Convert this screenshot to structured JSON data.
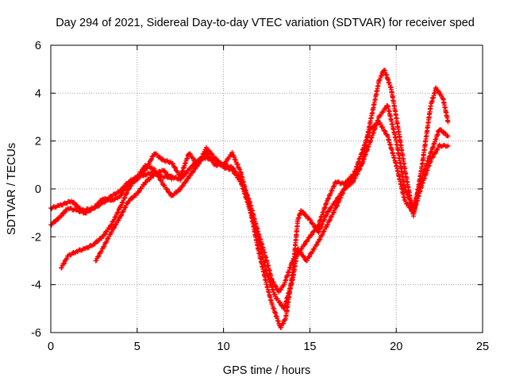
{
  "chart_data": {
    "type": "scatter",
    "title": "Day 294 of 2021, Sidereal Day-to-day VTEC variation (SDTVAR) for receiver sped",
    "xlabel": "GPS time / hours",
    "ylabel": "SDTVAR / TECUs",
    "xlim": [
      0,
      25
    ],
    "ylim": [
      -6,
      6
    ],
    "x_ticks": [
      0,
      5,
      10,
      15,
      20,
      25
    ],
    "y_ticks": [
      -6,
      -4,
      -2,
      0,
      2,
      4,
      6
    ],
    "grid": true,
    "legend": "none",
    "marker": "plus",
    "series": [
      {
        "color": "#ff0000",
        "points": [
          [
            0.0,
            -0.8
          ],
          [
            0.5,
            -0.7
          ],
          [
            1.2,
            -0.5
          ],
          [
            1.8,
            -0.9
          ],
          [
            2.5,
            -0.8
          ],
          [
            3.0,
            -0.6
          ],
          [
            3.5,
            -0.3
          ],
          [
            4.0,
            -0.1
          ],
          [
            4.5,
            0.3
          ],
          [
            5.0,
            0.5
          ],
          [
            5.5,
            0.6
          ],
          [
            6.0,
            0.7
          ],
          [
            6.5,
            0.5
          ],
          [
            7.0,
            0.5
          ],
          [
            7.5,
            0.4
          ],
          [
            8.0,
            0.8
          ],
          [
            8.5,
            1.2
          ],
          [
            9.0,
            1.3
          ],
          [
            9.5,
            1.2
          ],
          [
            10.0,
            1.0
          ],
          [
            10.5,
            0.9
          ],
          [
            11.0,
            0.4
          ],
          [
            11.5,
            -0.5
          ],
          [
            12.0,
            -1.8
          ],
          [
            12.5,
            -3.0
          ],
          [
            12.8,
            -3.8
          ],
          [
            13.2,
            -4.3
          ],
          [
            13.5,
            -4.0
          ],
          [
            14.0,
            -3.0
          ],
          [
            14.5,
            -2.5
          ],
          [
            15.0,
            -2.0
          ],
          [
            15.5,
            -1.5
          ],
          [
            16.0,
            -0.5
          ],
          [
            16.5,
            0.3
          ],
          [
            17.0,
            0.2
          ],
          [
            17.5,
            0.6
          ],
          [
            18.0,
            1.0
          ],
          [
            18.5,
            2.0
          ],
          [
            19.0,
            3.0
          ],
          [
            19.5,
            3.5
          ],
          [
            20.0,
            2.0
          ],
          [
            20.5,
            0.0
          ],
          [
            21.0,
            -0.8
          ],
          [
            21.5,
            0.5
          ],
          [
            22.0,
            1.5
          ],
          [
            22.5,
            2.5
          ],
          [
            23.0,
            2.2
          ]
        ]
      },
      {
        "color": "#ff0000",
        "points": [
          [
            0.0,
            -1.5
          ],
          [
            0.5,
            -1.2
          ],
          [
            1.0,
            -0.8
          ],
          [
            1.5,
            -0.9
          ],
          [
            2.0,
            -1.0
          ],
          [
            2.5,
            -0.8
          ],
          [
            3.0,
            -0.4
          ],
          [
            3.5,
            -0.5
          ],
          [
            4.0,
            -0.3
          ],
          [
            4.5,
            0.2
          ],
          [
            5.0,
            0.4
          ],
          [
            5.5,
            0.8
          ],
          [
            6.0,
            1.5
          ],
          [
            6.5,
            1.2
          ],
          [
            7.0,
            1.1
          ],
          [
            7.5,
            0.5
          ],
          [
            8.0,
            1.5
          ],
          [
            8.5,
            1.0
          ],
          [
            9.0,
            1.5
          ],
          [
            9.5,
            1.0
          ],
          [
            10.0,
            1.0
          ],
          [
            10.5,
            1.5
          ],
          [
            11.0,
            0.7
          ],
          [
            11.5,
            -0.7
          ],
          [
            12.0,
            -2.5
          ],
          [
            12.5,
            -4.0
          ],
          [
            12.8,
            -4.8
          ],
          [
            13.3,
            -5.8
          ],
          [
            13.6,
            -5.4
          ],
          [
            14.0,
            -3.5
          ],
          [
            14.3,
            -1.3
          ],
          [
            14.5,
            -0.9
          ],
          [
            15.0,
            -1.3
          ],
          [
            15.5,
            -1.8
          ],
          [
            16.0,
            -1.0
          ],
          [
            16.5,
            -0.5
          ],
          [
            17.0,
            0.0
          ],
          [
            17.5,
            0.3
          ],
          [
            18.0,
            1.0
          ],
          [
            18.5,
            2.8
          ],
          [
            19.0,
            4.5
          ],
          [
            19.3,
            5.0
          ],
          [
            19.7,
            4.2
          ],
          [
            20.0,
            3.0
          ],
          [
            20.5,
            0.8
          ],
          [
            21.0,
            -1.1
          ],
          [
            21.5,
            1.0
          ],
          [
            22.0,
            3.5
          ],
          [
            22.3,
            4.2
          ],
          [
            22.7,
            3.8
          ],
          [
            23.0,
            2.8
          ]
        ]
      },
      {
        "color": "#ff0000",
        "points": [
          [
            0.6,
            -3.3
          ],
          [
            1.0,
            -2.8
          ],
          [
            1.5,
            -2.6
          ],
          [
            2.0,
            -2.5
          ],
          [
            2.5,
            -2.3
          ],
          [
            3.0,
            -2.0
          ],
          [
            3.5,
            -1.5
          ],
          [
            4.0,
            -0.8
          ],
          [
            4.5,
            0.0
          ],
          [
            5.0,
            0.5
          ],
          [
            5.5,
            1.0
          ],
          [
            6.0,
            0.8
          ],
          [
            6.5,
            0.2
          ],
          [
            7.0,
            -0.3
          ],
          [
            7.5,
            0.0
          ],
          [
            8.0,
            0.5
          ],
          [
            8.5,
            1.0
          ],
          [
            9.0,
            1.7
          ],
          [
            9.5,
            1.3
          ],
          [
            10.0,
            0.9
          ],
          [
            10.5,
            0.8
          ],
          [
            11.0,
            0.3
          ],
          [
            11.5,
            -0.8
          ],
          [
            12.0,
            -2.0
          ],
          [
            12.5,
            -3.5
          ],
          [
            13.0,
            -4.5
          ],
          [
            13.5,
            -5.0
          ],
          [
            14.0,
            -3.8
          ],
          [
            14.3,
            -2.5
          ],
          [
            14.8,
            -3.0
          ],
          [
            15.5,
            -2.2
          ],
          [
            16.0,
            -1.5
          ],
          [
            16.5,
            -0.8
          ],
          [
            17.0,
            0.0
          ],
          [
            17.5,
            0.5
          ],
          [
            18.0,
            1.5
          ],
          [
            18.5,
            2.5
          ],
          [
            19.0,
            2.8
          ],
          [
            19.5,
            2.2
          ],
          [
            20.0,
            1.0
          ],
          [
            20.5,
            -0.5
          ],
          [
            21.0,
            -1.0
          ],
          [
            21.5,
            0.2
          ],
          [
            22.0,
            1.2
          ],
          [
            22.5,
            1.8
          ],
          [
            23.0,
            1.8
          ]
        ]
      },
      {
        "color": "#ff0000",
        "points": [
          [
            2.6,
            -3.0
          ],
          [
            3.0,
            -2.5
          ],
          [
            3.5,
            -1.8
          ],
          [
            4.0,
            -1.2
          ],
          [
            4.5,
            -0.5
          ],
          [
            5.0,
            -0.2
          ],
          [
            5.5,
            0.3
          ],
          [
            6.0,
            0.6
          ],
          [
            6.5,
            0.8
          ],
          [
            7.0,
            0.4
          ]
        ]
      }
    ]
  }
}
